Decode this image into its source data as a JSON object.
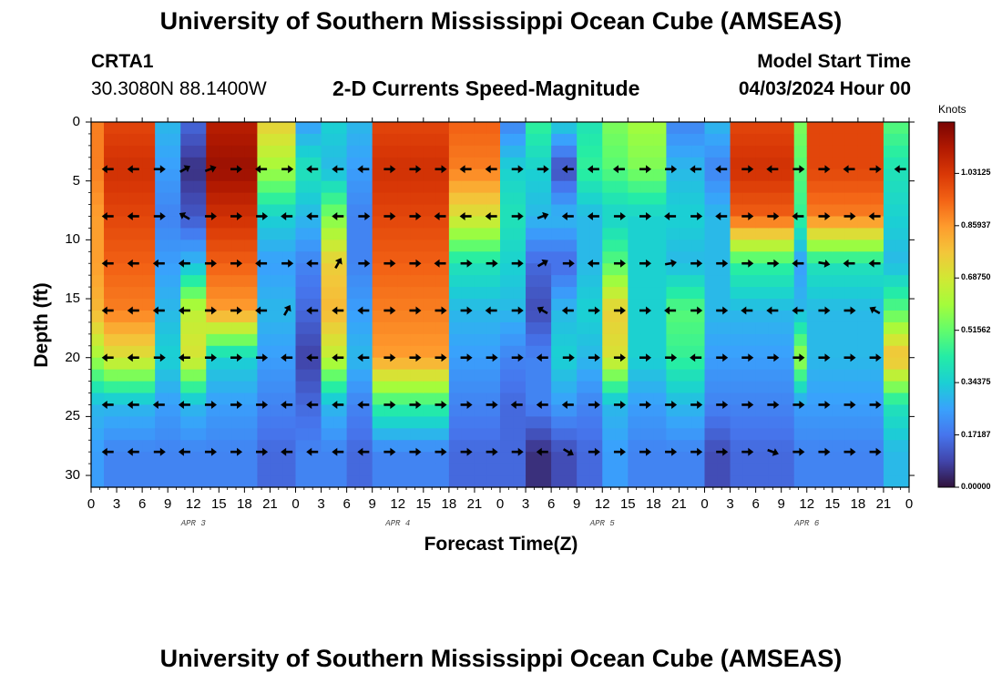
{
  "page": {
    "title_top": "University of Southern Mississippi Ocean Cube (AMSEAS)",
    "title_bottom": "University of Southern Mississippi Ocean Cube (AMSEAS)",
    "station": "CRTA1",
    "coords": "30.3080N  88.1400W",
    "subtitle": "2-D Currents Speed-Magnitude",
    "model_start_label": "Model Start Time",
    "model_start_value": "04/03/2024 Hour 00"
  },
  "colors": {
    "ramp": [
      "#30123b",
      "#4145ab",
      "#4675ed",
      "#39a2fc",
      "#1bcfd4",
      "#24eca6",
      "#61fc6c",
      "#a4fc3b",
      "#d1e834",
      "#f3c63a",
      "#fe9b2d",
      "#f36315",
      "#d93806",
      "#b11901",
      "#7a0403"
    ],
    "arrow": "#000000"
  },
  "chart_data": {
    "type": "heatmap",
    "title": "2-D Currents Speed-Magnitude",
    "xlabel": "Forecast Time(Z)",
    "ylabel": "Depth (ft)",
    "colorbar_label": "Knots",
    "colorbar_ticks": [
      "1.03125",
      "0.85937",
      "0.68750",
      "0.51562",
      "0.34375",
      "0.17187",
      "0.00000"
    ],
    "colorbar_values": [
      1.03125,
      0.859375,
      0.6875,
      0.515625,
      0.34375,
      0.171875,
      0.0
    ],
    "clim": [
      0,
      1.2
    ],
    "xlim": [
      0,
      96
    ],
    "ylim": [
      31,
      0
    ],
    "x_tick_labels": [
      "0",
      "3",
      "6",
      "9",
      "12",
      "15",
      "18",
      "21",
      "0",
      "3",
      "6",
      "9",
      "12",
      "15",
      "18",
      "21",
      "0",
      "3",
      "6",
      "9",
      "12",
      "15",
      "18",
      "21",
      "0",
      "3",
      "6",
      "9",
      "12",
      "15",
      "18",
      "21",
      "0"
    ],
    "x_tick_hours": [
      0,
      3,
      6,
      9,
      12,
      15,
      18,
      21,
      24,
      27,
      30,
      33,
      36,
      39,
      42,
      45,
      48,
      51,
      54,
      57,
      60,
      63,
      66,
      69,
      72,
      75,
      78,
      81,
      84,
      87,
      90,
      93,
      96
    ],
    "day_labels": [
      {
        "label": "APR 3",
        "hour": 12
      },
      {
        "label": "APR 4",
        "hour": 36
      },
      {
        "label": "APR 5",
        "hour": 60
      },
      {
        "label": "APR 6",
        "hour": 84
      }
    ],
    "y_tick_labels": [
      "0",
      "5",
      "10",
      "15",
      "20",
      "25",
      "30"
    ],
    "y_tick_values": [
      0,
      5,
      10,
      15,
      20,
      25,
      30
    ],
    "depth_levels": [
      0,
      4,
      8,
      12,
      16,
      20,
      24,
      28
    ],
    "speed_bands": [
      {
        "start": 0,
        "end": 1.5,
        "profile": [
          0.9,
          0.9,
          0.85,
          0.85,
          0.8,
          0.6,
          0.3,
          0.25
        ]
      },
      {
        "start": 1.5,
        "end": 8,
        "profile": [
          1.0,
          1.05,
          1.0,
          0.95,
          0.9,
          0.7,
          0.3,
          0.2
        ]
      },
      {
        "start": 8,
        "end": 10,
        "profile": [
          0.3,
          0.25,
          0.2,
          0.25,
          0.3,
          0.35,
          0.25,
          0.2
        ]
      },
      {
        "start": 10,
        "end": 13,
        "profile": [
          0.15,
          0.05,
          0.12,
          0.3,
          0.65,
          0.7,
          0.3,
          0.2
        ]
      },
      {
        "start": 13,
        "end": 20,
        "profile": [
          1.1,
          1.15,
          1.05,
          0.95,
          0.85,
          0.35,
          0.25,
          0.2
        ]
      },
      {
        "start": 20,
        "end": 24,
        "profile": [
          0.75,
          0.6,
          0.35,
          0.25,
          0.3,
          0.25,
          0.2,
          0.15
        ]
      },
      {
        "start": 24,
        "end": 27,
        "profile": [
          0.25,
          0.4,
          0.3,
          0.2,
          0.15,
          0.08,
          0.15,
          0.2
        ]
      },
      {
        "start": 27,
        "end": 30,
        "profile": [
          0.35,
          0.3,
          0.55,
          0.75,
          0.8,
          0.65,
          0.3,
          0.2
        ]
      },
      {
        "start": 30,
        "end": 33,
        "profile": [
          0.3,
          0.25,
          0.2,
          0.2,
          0.25,
          0.3,
          0.2,
          0.15
        ]
      },
      {
        "start": 33,
        "end": 42,
        "profile": [
          1.0,
          1.05,
          1.0,
          0.95,
          0.9,
          0.85,
          0.45,
          0.2
        ]
      },
      {
        "start": 42,
        "end": 48,
        "profile": [
          0.95,
          0.9,
          0.7,
          0.4,
          0.3,
          0.25,
          0.2,
          0.15
        ]
      },
      {
        "start": 48,
        "end": 51,
        "profile": [
          0.2,
          0.35,
          0.4,
          0.35,
          0.3,
          0.2,
          0.15,
          0.15
        ]
      },
      {
        "start": 51,
        "end": 54,
        "profile": [
          0.45,
          0.35,
          0.3,
          0.15,
          0.1,
          0.2,
          0.2,
          0.05
        ]
      },
      {
        "start": 54,
        "end": 57,
        "profile": [
          0.35,
          0.1,
          0.3,
          0.15,
          0.3,
          0.35,
          0.25,
          0.1
        ]
      },
      {
        "start": 57,
        "end": 60,
        "profile": [
          0.4,
          0.45,
          0.3,
          0.3,
          0.35,
          0.3,
          0.2,
          0.15
        ]
      },
      {
        "start": 60,
        "end": 63,
        "profile": [
          0.55,
          0.5,
          0.35,
          0.5,
          0.75,
          0.7,
          0.3,
          0.25
        ]
      },
      {
        "start": 63,
        "end": 68,
        "profile": [
          0.6,
          0.55,
          0.35,
          0.35,
          0.35,
          0.35,
          0.25,
          0.2
        ]
      },
      {
        "start": 68,
        "end": 72,
        "profile": [
          0.2,
          0.3,
          0.35,
          0.3,
          0.5,
          0.45,
          0.3,
          0.2
        ]
      },
      {
        "start": 72,
        "end": 75,
        "profile": [
          0.3,
          0.2,
          0.3,
          0.3,
          0.3,
          0.25,
          0.2,
          0.1
        ]
      },
      {
        "start": 75,
        "end": 82,
        "profile": [
          1.0,
          1.05,
          0.95,
          0.45,
          0.3,
          0.25,
          0.2,
          0.15
        ]
      },
      {
        "start": 82,
        "end": 84,
        "profile": [
          0.55,
          0.5,
          0.45,
          0.25,
          0.3,
          0.6,
          0.25,
          0.2
        ]
      },
      {
        "start": 84,
        "end": 93,
        "profile": [
          1.0,
          1.0,
          0.9,
          0.4,
          0.3,
          0.3,
          0.25,
          0.2
        ]
      },
      {
        "start": 93,
        "end": 96,
        "profile": [
          0.5,
          0.4,
          0.35,
          0.3,
          0.5,
          0.8,
          0.4,
          0.3
        ]
      }
    ],
    "arrows": [
      {
        "depth": 4,
        "hours": [
          2,
          5,
          8,
          11,
          14,
          17,
          20,
          23,
          26,
          29,
          32,
          35,
          38,
          41,
          44,
          47,
          50,
          53,
          56,
          59,
          62,
          65,
          68,
          71,
          74,
          77,
          80,
          83,
          86,
          89,
          92,
          95
        ],
        "dir": [
          180,
          180,
          0,
          30,
          20,
          0,
          180,
          0,
          180,
          180,
          180,
          0,
          0,
          0,
          180,
          180,
          0,
          0,
          180,
          180,
          180,
          0,
          0,
          180,
          180,
          0,
          180,
          0,
          0,
          180,
          0,
          180
        ]
      },
      {
        "depth": 8,
        "hours": [
          2,
          5,
          8,
          11,
          14,
          17,
          20,
          23,
          26,
          29,
          32,
          35,
          38,
          41,
          44,
          47,
          50,
          53,
          56,
          59,
          62,
          65,
          68,
          71,
          74,
          77,
          80,
          83,
          86,
          89,
          92
        ],
        "dir": [
          180,
          180,
          0,
          150,
          0,
          0,
          0,
          180,
          180,
          180,
          0,
          0,
          0,
          180,
          180,
          180,
          0,
          20,
          180,
          180,
          0,
          0,
          180,
          0,
          180,
          0,
          0,
          180,
          0,
          0,
          180
        ]
      },
      {
        "depth": 12,
        "hours": [
          2,
          5,
          8,
          11,
          14,
          17,
          20,
          23,
          26,
          29,
          32,
          35,
          38,
          41,
          44,
          47,
          50,
          53,
          56,
          59,
          62,
          65,
          68,
          71,
          74,
          77,
          80,
          83,
          86,
          89,
          92
        ],
        "dir": [
          180,
          180,
          180,
          180,
          0,
          0,
          180,
          0,
          180,
          60,
          0,
          0,
          0,
          180,
          0,
          0,
          0,
          30,
          0,
          180,
          0,
          0,
          10,
          0,
          0,
          0,
          0,
          180,
          -10,
          180,
          180
        ]
      },
      {
        "depth": 16,
        "hours": [
          2,
          5,
          8,
          11,
          14,
          17,
          20,
          23,
          26,
          29,
          32,
          35,
          38,
          41,
          44,
          47,
          50,
          53,
          56,
          59,
          62,
          65,
          68,
          71,
          74,
          77,
          80,
          83,
          86,
          89,
          92
        ],
        "dir": [
          180,
          180,
          180,
          180,
          0,
          0,
          180,
          60,
          180,
          180,
          180,
          0,
          0,
          0,
          0,
          180,
          0,
          150,
          180,
          0,
          0,
          0,
          180,
          0,
          0,
          180,
          180,
          180,
          0,
          0,
          150
        ]
      },
      {
        "depth": 20,
        "hours": [
          2,
          5,
          8,
          11,
          14,
          17,
          20,
          23,
          26,
          29,
          32,
          35,
          38,
          41,
          44,
          47,
          50,
          53,
          56,
          59,
          62,
          65,
          68,
          71,
          74,
          77,
          80,
          83,
          86,
          89,
          92
        ],
        "dir": [
          180,
          180,
          0,
          180,
          0,
          0,
          0,
          180,
          180,
          180,
          180,
          0,
          0,
          0,
          0,
          0,
          0,
          180,
          0,
          0,
          0,
          0,
          0,
          180,
          0,
          0,
          0,
          0,
          0,
          0,
          0
        ]
      },
      {
        "depth": 24,
        "hours": [
          2,
          5,
          8,
          11,
          14,
          17,
          20,
          23,
          26,
          29,
          32,
          35,
          38,
          41,
          44,
          47,
          50,
          53,
          56,
          59,
          62,
          65,
          68,
          71,
          74,
          77,
          80,
          83,
          86,
          89,
          92
        ],
        "dir": [
          180,
          180,
          180,
          180,
          0,
          0,
          0,
          180,
          180,
          180,
          180,
          0,
          0,
          0,
          0,
          0,
          180,
          180,
          180,
          0,
          0,
          0,
          0,
          0,
          0,
          0,
          0,
          0,
          0,
          0,
          0
        ]
      },
      {
        "depth": 28,
        "hours": [
          2,
          5,
          8,
          11,
          14,
          17,
          20,
          23,
          26,
          29,
          32,
          35,
          38,
          41,
          44,
          47,
          50,
          53,
          56,
          59,
          62,
          65,
          68,
          71,
          74,
          77,
          80,
          83,
          86,
          89,
          92
        ],
        "dir": [
          180,
          180,
          0,
          180,
          0,
          0,
          0,
          180,
          180,
          180,
          180,
          0,
          0,
          0,
          0,
          0,
          0,
          180,
          -30,
          0,
          0,
          0,
          0,
          0,
          0,
          0,
          -20,
          0,
          0,
          0,
          0
        ]
      }
    ]
  }
}
